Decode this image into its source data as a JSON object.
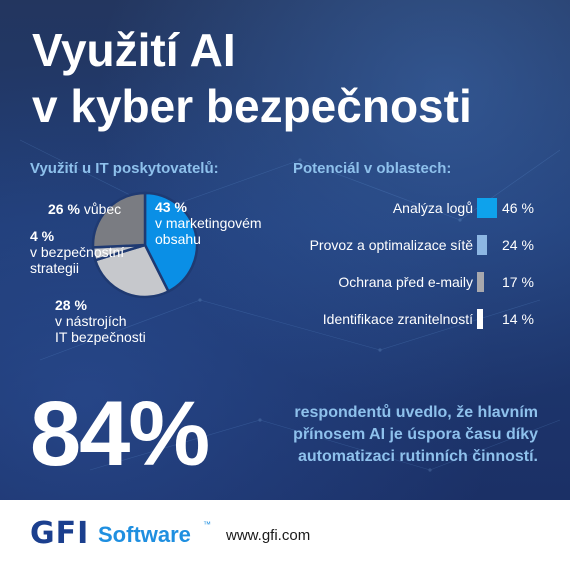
{
  "title": {
    "line1": "Využití AI",
    "line2": "v kyber bezpečnosti"
  },
  "colors": {
    "background": "#1d2f58",
    "heading_accent": "#8ec1ec",
    "pie_blue": "#0a8fe6",
    "pie_light": "#c6c8cc",
    "pie_dark": "#7a7c82",
    "bar_blue": "#0ea2ec",
    "bar_lightblue": "#8db7e3",
    "bar_gray": "#a8a8ad",
    "bar_white": "#ffffff",
    "gfi_navy": "#1b3f8e",
    "gfi_blue": "#1f8fe0"
  },
  "chart_data": [
    {
      "type": "pie",
      "title": "Využití u IT poskytovatelů:",
      "slices": [
        {
          "label_pct": "43 %",
          "label_line1": "v marketingovém",
          "label_line2": "obsahu",
          "value": 43,
          "color": "#0a8fe6"
        },
        {
          "label_pct": "28 %",
          "label_line1": "v nástrojích",
          "label_line2": "IT bezpečnosti",
          "value": 28,
          "color": "#c6c8cc"
        },
        {
          "label_pct": "4 %",
          "label_line1": "v bezpečnostní",
          "label_line2": "strategii",
          "value": 4,
          "color": "#c6c8cc"
        },
        {
          "label_pct": "26 %",
          "label_line1": "vůbec",
          "label_line2": "",
          "value": 26,
          "color": "#7a7c82"
        }
      ]
    },
    {
      "type": "bar",
      "title": "Potenciál v oblastech:",
      "categories": [
        "Analýza logů",
        "Provoz a optimalizace sítě",
        "Ochrana před e-maily",
        "Identifikace zranitelností"
      ],
      "values": [
        46,
        24,
        17,
        14
      ],
      "value_labels": [
        "46 %",
        "24 %",
        "17 %",
        "14 %"
      ],
      "colors": [
        "#0ea2ec",
        "#8db7e3",
        "#a8a8ad",
        "#ffffff"
      ],
      "max": 46
    }
  ],
  "highlight": {
    "number": "84%",
    "line1": "respondentů uvedlo, že hlavním",
    "line2": "přínosem AI je úspora času díky",
    "line3": "automatizaci rutinních činností."
  },
  "footer": {
    "brand": "GFI",
    "brand_sub": "Software",
    "tm": "™",
    "url": "www.gfi.com"
  }
}
